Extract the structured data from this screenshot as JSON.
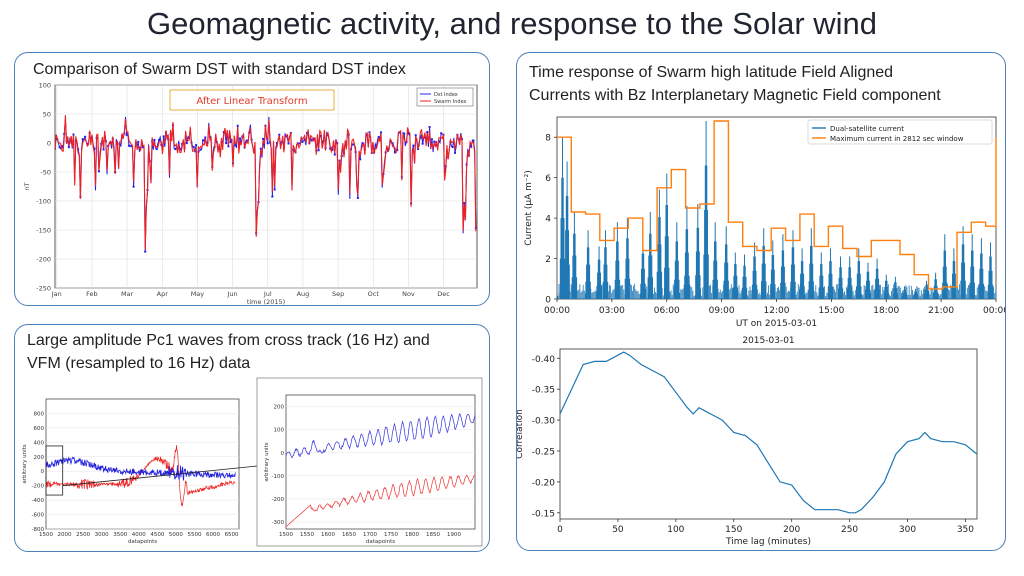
{
  "page": {
    "title": "Geomagnetic activity, and response to the Solar wind"
  },
  "panels": {
    "dst": {
      "caption": "Comparison of Swarm DST with standard DST index",
      "annotation": "After Linear Transform"
    },
    "fac": {
      "caption_line1": "Time response of Swarm high latitude Field Aligned",
      "caption_line2": "Currents with Bz Interplanetary Magnetic Field component"
    },
    "pc1": {
      "caption_line1": "Large amplitude Pc1 waves from cross track (16 Hz) and",
      "caption_line2": "VFM (resampled to 16 Hz) data"
    }
  },
  "chart_data": [
    {
      "id": "dst",
      "type": "line",
      "xlabel": "time (2015)",
      "ylabel": "nT",
      "x_ticks": [
        "Jan",
        "Feb",
        "Mar",
        "Apr",
        "May",
        "Jun",
        "Jul",
        "Aug",
        "Sep",
        "Oct",
        "Nov",
        "Dec"
      ],
      "ylim": [
        -250,
        100
      ],
      "y_ticks": [
        100,
        50,
        0,
        -50,
        -100,
        -150,
        -200,
        -250
      ],
      "grid": true,
      "legend_position": "top-right",
      "series": [
        {
          "name": "Dst Index",
          "color": "#2020ee",
          "marker": "square"
        },
        {
          "name": "Swarm Index",
          "color": "#ee2020",
          "marker": "star"
        }
      ],
      "storms": [
        {
          "month": 2.55,
          "min": -223
        },
        {
          "month": 5.7,
          "min": -204
        },
        {
          "month": 8.05,
          "min": -100
        },
        {
          "month": 8.55,
          "min": -125
        },
        {
          "month": 9.3,
          "min": -80
        },
        {
          "month": 10.1,
          "min": -105
        },
        {
          "month": 11.05,
          "min": -110
        },
        {
          "month": 11.6,
          "min": -160
        },
        {
          "month": 11.95,
          "min": -110
        }
      ]
    },
    {
      "id": "fac",
      "type": "line",
      "xlabel": "UT on 2015-03-01",
      "ylabel": "Current (μA m⁻²)",
      "x_ticks": [
        "00:00",
        "03:00",
        "06:00",
        "09:00",
        "12:00",
        "15:00",
        "18:00",
        "21:00",
        "00:00"
      ],
      "xlim_hours": [
        0,
        24
      ],
      "ylim": [
        0,
        9
      ],
      "y_ticks": [
        0,
        2,
        4,
        6,
        8
      ],
      "legend_position": "top-right",
      "series": [
        {
          "name": "Dual-satellite current",
          "color": "#1f77b4"
        },
        {
          "name": "Maximum current in 2812 sec window",
          "color": "#ff7f0e",
          "step_hours": [
            0,
            0.78,
            1.56,
            2.34,
            3.12,
            3.9,
            4.69,
            5.47,
            6.25,
            7.03,
            7.81,
            8.59,
            9.37,
            10.15,
            10.93,
            11.71,
            12.5,
            13.28,
            14.06,
            14.84,
            15.62,
            16.4,
            17.18,
            17.96,
            18.75,
            19.53,
            20.31,
            21.09,
            21.87,
            22.65,
            23.43
          ],
          "step_values": [
            8.0,
            4.3,
            4.2,
            2.9,
            3.5,
            4.0,
            2.4,
            5.5,
            6.4,
            4.5,
            4.7,
            8.8,
            3.8,
            2.6,
            2.4,
            3.5,
            2.9,
            4.2,
            2.6,
            3.6,
            2.5,
            2.1,
            2.9,
            2.9,
            2.2,
            1.2,
            0.5,
            0.6,
            3.3,
            3.8,
            3.6
          ]
        }
      ],
      "spikes": [
        {
          "h": 0.3,
          "v": 8.0
        },
        {
          "h": 0.55,
          "v": 6.8
        },
        {
          "h": 0.95,
          "v": 4.3
        },
        {
          "h": 1.7,
          "v": 3.4
        },
        {
          "h": 2.3,
          "v": 2.6
        },
        {
          "h": 2.65,
          "v": 3.4
        },
        {
          "h": 3.3,
          "v": 3.8
        },
        {
          "h": 3.85,
          "v": 4.0
        },
        {
          "h": 4.7,
          "v": 3.0
        },
        {
          "h": 5.1,
          "v": 4.3
        },
        {
          "h": 5.6,
          "v": 5.4
        },
        {
          "h": 6.0,
          "v": 6.2
        },
        {
          "h": 6.55,
          "v": 3.8
        },
        {
          "h": 7.1,
          "v": 4.6
        },
        {
          "h": 7.7,
          "v": 4.7
        },
        {
          "h": 8.15,
          "v": 8.8
        },
        {
          "h": 8.65,
          "v": 3.8
        },
        {
          "h": 9.25,
          "v": 3.6
        },
        {
          "h": 9.75,
          "v": 2.3
        },
        {
          "h": 10.25,
          "v": 2.2
        },
        {
          "h": 10.8,
          "v": 2.8
        },
        {
          "h": 11.3,
          "v": 3.5
        },
        {
          "h": 11.8,
          "v": 2.9
        },
        {
          "h": 12.35,
          "v": 3.2
        },
        {
          "h": 12.9,
          "v": 3.4
        },
        {
          "h": 13.4,
          "v": 2.5
        },
        {
          "h": 13.9,
          "v": 3.5
        },
        {
          "h": 14.45,
          "v": 2.3
        },
        {
          "h": 14.95,
          "v": 2.5
        },
        {
          "h": 15.5,
          "v": 2.1
        },
        {
          "h": 16.0,
          "v": 2.1
        },
        {
          "h": 16.5,
          "v": 2.5
        },
        {
          "h": 17.0,
          "v": 1.8
        },
        {
          "h": 17.5,
          "v": 2.0
        },
        {
          "h": 18.0,
          "v": 1.2
        },
        {
          "h": 18.5,
          "v": 1.1
        },
        {
          "h": 19.0,
          "v": 0.6
        },
        {
          "h": 19.6,
          "v": 0.5
        },
        {
          "h": 20.2,
          "v": 0.9
        },
        {
          "h": 20.7,
          "v": 1.3
        },
        {
          "h": 21.2,
          "v": 3.2
        },
        {
          "h": 21.7,
          "v": 2.5
        },
        {
          "h": 22.2,
          "v": 3.6
        },
        {
          "h": 22.7,
          "v": 3.2
        },
        {
          "h": 23.2,
          "v": 3.0
        },
        {
          "h": 23.7,
          "v": 2.8
        }
      ]
    },
    {
      "id": "corr",
      "type": "line",
      "title": "2015-03-01",
      "xlabel": "Time lag (minutes)",
      "ylabel": "Correlation",
      "xlim": [
        0,
        360
      ],
      "x_ticks": [
        0,
        50,
        100,
        150,
        200,
        250,
        300,
        350
      ],
      "ylim": [
        -0.14,
        -0.41
      ],
      "y_ticks": [
        -0.4,
        -0.35,
        -0.3,
        -0.25,
        -0.2,
        -0.15
      ],
      "series": [
        {
          "name": "",
          "color": "#1f77b4",
          "x": [
            0,
            10,
            20,
            30,
            40,
            50,
            55,
            60,
            70,
            80,
            90,
            100,
            110,
            115,
            120,
            125,
            130,
            140,
            150,
            160,
            170,
            180,
            190,
            200,
            210,
            220,
            230,
            240,
            250,
            255,
            260,
            270,
            280,
            290,
            300,
            310,
            315,
            320,
            330,
            340,
            350,
            360
          ],
          "y": [
            -0.31,
            -0.35,
            -0.39,
            -0.395,
            -0.395,
            -0.405,
            -0.41,
            -0.405,
            -0.39,
            -0.38,
            -0.37,
            -0.345,
            -0.32,
            -0.31,
            -0.32,
            -0.315,
            -0.31,
            -0.3,
            -0.28,
            -0.275,
            -0.26,
            -0.23,
            -0.2,
            -0.195,
            -0.17,
            -0.155,
            -0.155,
            -0.155,
            -0.15,
            -0.15,
            -0.155,
            -0.175,
            -0.2,
            -0.245,
            -0.265,
            -0.27,
            -0.28,
            -0.27,
            -0.265,
            -0.265,
            -0.26,
            -0.245
          ]
        }
      ]
    },
    {
      "id": "pc1_full",
      "type": "line",
      "xlabel": "datapoints",
      "ylabel": "arbitrary units",
      "xlim": [
        1500,
        6700
      ],
      "x_ticks": [
        1500,
        2000,
        2500,
        3000,
        3500,
        4000,
        4500,
        5000,
        5500,
        6000,
        6500
      ],
      "ylim": [
        -800,
        1000
      ],
      "y_ticks": [
        -800,
        -600,
        -400,
        -200,
        0,
        200,
        400,
        600,
        800
      ],
      "series": [
        {
          "name": "",
          "color": "#2222dd"
        },
        {
          "name": "",
          "color": "#ee2222"
        }
      ]
    },
    {
      "id": "pc1_zoom",
      "type": "line",
      "xlabel": "datapoints",
      "ylabel": "arbitrary units",
      "xlim": [
        1500,
        1950
      ],
      "x_ticks": [
        1500,
        1550,
        1600,
        1650,
        1700,
        1750,
        1800,
        1850,
        1900
      ],
      "ylim": [
        -330,
        250
      ],
      "y_ticks": [
        200,
        100,
        0,
        -100,
        -200,
        -300
      ],
      "series": [
        {
          "name": "",
          "color": "#3333dd"
        },
        {
          "name": "",
          "color": "#ee3333"
        }
      ]
    }
  ]
}
